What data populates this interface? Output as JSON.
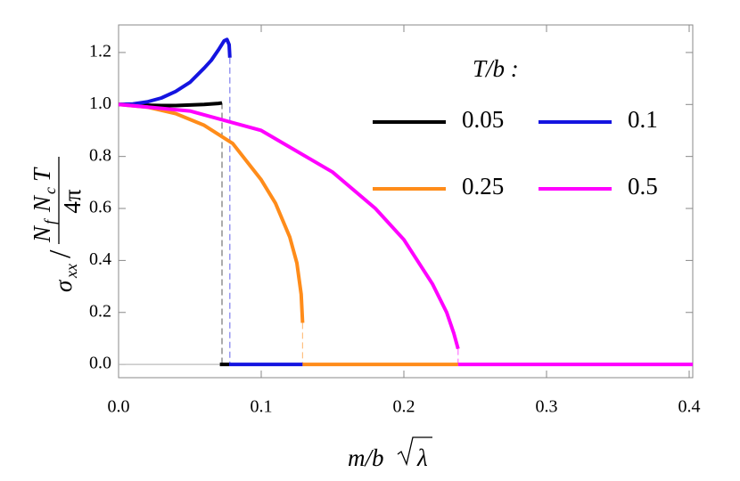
{
  "chart_data": {
    "type": "line",
    "x_label": {
      "text": "m/b",
      "radicand": "λ"
    },
    "y_label": {
      "left": "σ",
      "left_sub": "xx",
      "slash": "/",
      "num": [
        {
          "t": "N",
          "s": "f"
        },
        {
          "t": "N",
          "s": "c"
        },
        {
          "t": "T"
        }
      ],
      "den": "4π"
    },
    "legend": {
      "title": "T/b :",
      "columns": 2,
      "position": "upper-right"
    },
    "xlim": [
      0,
      0.4025
    ],
    "ylim": [
      -0.051,
      1.306
    ],
    "xticks": [
      {
        "value": 0,
        "label": "0.0"
      },
      0.1,
      0.2,
      0.3,
      0.4
    ],
    "yticks": [
      {
        "value": 0,
        "label": "0.0"
      },
      0.2,
      0.4,
      0.6,
      0.8,
      {
        "value": 1,
        "label": "1.0"
      },
      1.2
    ],
    "series": [
      {
        "color": "#bbbbbb",
        "x": [
          0,
          0.071
        ],
        "values": [
          0,
          0
        ]
      },
      {
        "name": "0.05",
        "color": "#000000",
        "x": [
          0,
          0.01,
          0.02,
          0.03,
          0.04,
          0.05,
          0.06,
          0.07,
          0.0725,
          null,
          0.071,
          0.0775
        ],
        "values": [
          1,
          0.999,
          0.997,
          0.996,
          0.996,
          0.998,
          1.0,
          1.004,
          1.006,
          null,
          0,
          0
        ]
      },
      {
        "name": "0.1",
        "color": "#1414e0",
        "x": [
          0,
          0.01,
          0.02,
          0.03,
          0.04,
          0.05,
          0.06,
          0.065,
          0.07,
          0.074,
          0.076,
          0.0775,
          0.078,
          null,
          0.0775,
          0.129
        ],
        "values": [
          1,
          1.002,
          1.01,
          1.025,
          1.05,
          1.085,
          1.14,
          1.17,
          1.21,
          1.245,
          1.25,
          1.23,
          1.18,
          null,
          0,
          0
        ]
      },
      {
        "name": "0.25",
        "color": "#ff8c1a",
        "x": [
          0,
          0.02,
          0.04,
          0.06,
          0.08,
          0.1,
          0.11,
          0.12,
          0.125,
          0.128,
          0.129,
          null,
          0.129,
          0.238
        ],
        "values": [
          1,
          0.99,
          0.965,
          0.92,
          0.85,
          0.71,
          0.62,
          0.49,
          0.39,
          0.27,
          0.16,
          null,
          0,
          0
        ]
      },
      {
        "name": "0.5",
        "color": "#ff00ff",
        "x": [
          0,
          0.05,
          0.1,
          0.15,
          0.18,
          0.2,
          0.22,
          0.23,
          0.235,
          0.238,
          null,
          0.238,
          0.4025
        ],
        "values": [
          1,
          0.975,
          0.9,
          0.74,
          0.6,
          0.48,
          0.31,
          0.2,
          0.12,
          0.06,
          null,
          0,
          0
        ]
      }
    ]
  }
}
